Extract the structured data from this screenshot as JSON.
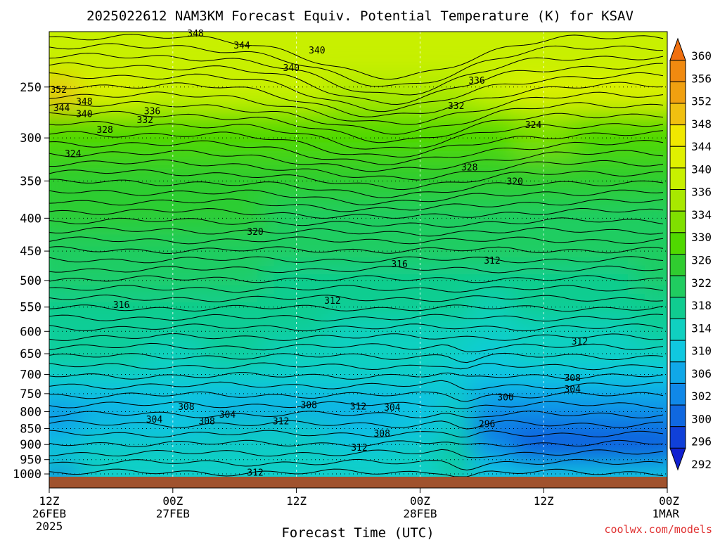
{
  "chart_data": {
    "type": "heatmap",
    "title": "2025022612 NAM3KM Forecast Equiv. Potential Temperature (K) for KSAV",
    "xlabel": "Forecast Time (UTC)",
    "ylabel": "",
    "watermark": "coolwx.com/models",
    "y_scale": "log-pressure",
    "ylim": [
      1010,
      205
    ],
    "y_unit": "hPa",
    "y_ticks": [
      {
        "value": 250,
        "label": "250"
      },
      {
        "value": 300,
        "label": "300"
      },
      {
        "value": 350,
        "label": "350"
      },
      {
        "value": 400,
        "label": "400"
      },
      {
        "value": 450,
        "label": "450"
      },
      {
        "value": 500,
        "label": "500"
      },
      {
        "value": 550,
        "label": "550"
      },
      {
        "value": 600,
        "label": "600"
      },
      {
        "value": 650,
        "label": "650"
      },
      {
        "value": 700,
        "label": "700"
      },
      {
        "value": 750,
        "label": "750"
      },
      {
        "value": 800,
        "label": "800"
      },
      {
        "value": 850,
        "label": "850"
      },
      {
        "value": 900,
        "label": "900"
      },
      {
        "value": 950,
        "label": "950"
      },
      {
        "value": 1000,
        "label": "1000"
      }
    ],
    "xlim": [
      0,
      60
    ],
    "x_unit": "forecast hours from 2025-02-26 12Z",
    "x_ticks": [
      {
        "value": 0,
        "l1": "12Z",
        "l2": "26FEB",
        "l3": "2025"
      },
      {
        "value": 12,
        "l1": "00Z",
        "l2": "27FEB",
        "l3": ""
      },
      {
        "value": 24,
        "l1": "12Z",
        "l2": "",
        "l3": ""
      },
      {
        "value": 36,
        "l1": "00Z",
        "l2": "28FEB",
        "l3": ""
      },
      {
        "value": 48,
        "l1": "12Z",
        "l2": "",
        "l3": ""
      },
      {
        "value": 60,
        "l1": "00Z",
        "l2": "1MAR",
        "l3": ""
      }
    ],
    "grid": true,
    "colorbar": {
      "levels": [
        360,
        356,
        352,
        348,
        344,
        340,
        336,
        334,
        330,
        326,
        322,
        318,
        314,
        310,
        306,
        302,
        300,
        296,
        292
      ],
      "colors": [
        "#f07010",
        "#f08a10",
        "#f0a010",
        "#f0c010",
        "#f0e800",
        "#e0f000",
        "#c8f000",
        "#a8e800",
        "#80e000",
        "#50d800",
        "#30cc30",
        "#20cc60",
        "#10cc90",
        "#10d0c0",
        "#10c8e0",
        "#10a8e8",
        "#1088e8",
        "#1068e0",
        "#1040d8",
        "#1020d0"
      ],
      "position": "right"
    },
    "time_hours": [
      0,
      6,
      12,
      18,
      24,
      30,
      36,
      40,
      42,
      48,
      54,
      60
    ],
    "pressure_levels": [
      250,
      300,
      350,
      400,
      450,
      500,
      550,
      600,
      650,
      700,
      750,
      800,
      850,
      900,
      950,
      1000
    ],
    "theta_e": [
      [
        348,
        340,
        336,
        336,
        336,
        334,
        334,
        334,
        336,
        340,
        340,
        340
      ],
      [
        326,
        326,
        328,
        328,
        326,
        326,
        326,
        326,
        328,
        330,
        328,
        328
      ],
      [
        324,
        324,
        324,
        324,
        324,
        324,
        324,
        324,
        324,
        322,
        322,
        322
      ],
      [
        322,
        322,
        322,
        322,
        320,
        320,
        318,
        320,
        320,
        320,
        320,
        320
      ],
      [
        318,
        318,
        318,
        318,
        318,
        318,
        318,
        318,
        318,
        318,
        318,
        318
      ],
      [
        318,
        318,
        318,
        318,
        316,
        316,
        316,
        316,
        316,
        316,
        316,
        318
      ],
      [
        316,
        316,
        316,
        314,
        314,
        314,
        314,
        314,
        312,
        314,
        314,
        316
      ],
      [
        314,
        314,
        314,
        314,
        314,
        312,
        312,
        312,
        312,
        312,
        312,
        314
      ],
      [
        314,
        314,
        312,
        314,
        312,
        312,
        312,
        310,
        308,
        310,
        310,
        312
      ],
      [
        310,
        310,
        310,
        310,
        310,
        310,
        310,
        308,
        306,
        306,
        308,
        308
      ],
      [
        306,
        306,
        306,
        306,
        306,
        308,
        308,
        310,
        302,
        302,
        304,
        304
      ],
      [
        300,
        304,
        306,
        304,
        304,
        304,
        306,
        310,
        300,
        300,
        300,
        300
      ],
      [
        304,
        306,
        308,
        310,
        310,
        306,
        306,
        312,
        296,
        296,
        296,
        298
      ],
      [
        308,
        310,
        310,
        312,
        312,
        308,
        310,
        316,
        300,
        294,
        292,
        294
      ],
      [
        310,
        312,
        310,
        312,
        312,
        310,
        312,
        316,
        302,
        298,
        296,
        298
      ],
      [
        298,
        312,
        312,
        312,
        312,
        312,
        312,
        314,
        308,
        306,
        306,
        306
      ]
    ],
    "contour_labels": [
      {
        "text": "348",
        "x": 14.2,
        "p": 206
      },
      {
        "text": "344",
        "x": 18.7,
        "p": 215
      },
      {
        "text": "340",
        "x": 26.0,
        "p": 219
      },
      {
        "text": "340",
        "x": 23.5,
        "p": 233
      },
      {
        "text": "352",
        "x": 0.9,
        "p": 252
      },
      {
        "text": "348",
        "x": 3.4,
        "p": 263
      },
      {
        "text": "344",
        "x": 1.2,
        "p": 269
      },
      {
        "text": "340",
        "x": 3.4,
        "p": 275
      },
      {
        "text": "336",
        "x": 10.0,
        "p": 272
      },
      {
        "text": "332",
        "x": 9.3,
        "p": 281
      },
      {
        "text": "328",
        "x": 5.4,
        "p": 291
      },
      {
        "text": "324",
        "x": 2.3,
        "p": 317
      },
      {
        "text": "336",
        "x": 41.5,
        "p": 244
      },
      {
        "text": "332",
        "x": 39.5,
        "p": 267
      },
      {
        "text": "324",
        "x": 47.0,
        "p": 286
      },
      {
        "text": "328",
        "x": 40.8,
        "p": 333
      },
      {
        "text": "320",
        "x": 45.2,
        "p": 350
      },
      {
        "text": "320",
        "x": 20.0,
        "p": 419
      },
      {
        "text": "316",
        "x": 34.0,
        "p": 471
      },
      {
        "text": "312",
        "x": 43.0,
        "p": 465
      },
      {
        "text": "316",
        "x": 7.0,
        "p": 545
      },
      {
        "text": "312",
        "x": 27.5,
        "p": 537
      },
      {
        "text": "312",
        "x": 51.5,
        "p": 621
      },
      {
        "text": "308",
        "x": 50.8,
        "p": 708
      },
      {
        "text": "304",
        "x": 50.8,
        "p": 737
      },
      {
        "text": "300",
        "x": 44.3,
        "p": 759
      },
      {
        "text": "296",
        "x": 42.5,
        "p": 835
      },
      {
        "text": "308",
        "x": 25.2,
        "p": 780
      },
      {
        "text": "312",
        "x": 30.0,
        "p": 784
      },
      {
        "text": "304",
        "x": 33.3,
        "p": 787
      },
      {
        "text": "308",
        "x": 13.3,
        "p": 785
      },
      {
        "text": "304",
        "x": 17.3,
        "p": 807
      },
      {
        "text": "304",
        "x": 10.2,
        "p": 822
      },
      {
        "text": "308",
        "x": 15.3,
        "p": 827
      },
      {
        "text": "312",
        "x": 22.5,
        "p": 827
      },
      {
        "text": "308",
        "x": 32.3,
        "p": 864
      },
      {
        "text": "312",
        "x": 30.1,
        "p": 909
      },
      {
        "text": "312",
        "x": 20.0,
        "p": 993
      }
    ]
  }
}
